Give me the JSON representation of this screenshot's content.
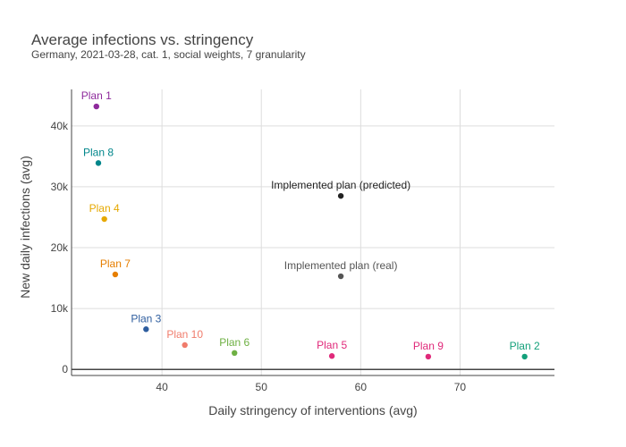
{
  "chart_data": {
    "type": "scatter",
    "title": "Average infections vs. stringency",
    "subtitle": "Germany, 2021-03-28, cat. 1, social weights, 7 granularity",
    "xlabel": "Daily stringency of interventions (avg)",
    "ylabel": "New daily infections (avg)",
    "xlim": [
      30.9,
      79.5
    ],
    "ylim": [
      -1000,
      46000
    ],
    "xticks": [
      40,
      50,
      60,
      70
    ],
    "yticks": [
      0,
      10000,
      20000,
      30000,
      40000
    ],
    "ytick_labels": [
      "0",
      "10k",
      "20k",
      "30k",
      "40k"
    ],
    "grid": true,
    "points": [
      {
        "label": "Plan 1",
        "x": 33.4,
        "y": 43200,
        "color": "#8e2a9c"
      },
      {
        "label": "Plan 8",
        "x": 33.6,
        "y": 33900,
        "color": "#00868b"
      },
      {
        "label": "Plan 4",
        "x": 34.2,
        "y": 24700,
        "color": "#e6a800"
      },
      {
        "label": "Plan 7",
        "x": 35.3,
        "y": 15600,
        "color": "#e67e00"
      },
      {
        "label": "Plan 3",
        "x": 38.4,
        "y": 6600,
        "color": "#2e5d9e"
      },
      {
        "label": "Plan 10",
        "x": 42.3,
        "y": 4000,
        "color": "#f07c6c"
      },
      {
        "label": "Plan 6",
        "x": 47.3,
        "y": 2700,
        "color": "#6eb043"
      },
      {
        "label": "Plan 5",
        "x": 57.1,
        "y": 2200,
        "color": "#e0297a"
      },
      {
        "label": "Plan 9",
        "x": 66.8,
        "y": 2100,
        "color": "#e0297a"
      },
      {
        "label": "Plan 2",
        "x": 76.5,
        "y": 2100,
        "color": "#13a07a"
      },
      {
        "label": "Implemented plan (predicted)",
        "x": 58.0,
        "y": 28500,
        "color": "#222222"
      },
      {
        "label": "Implemented plan (real)",
        "x": 58.0,
        "y": 15300,
        "color": "#555555"
      }
    ]
  }
}
